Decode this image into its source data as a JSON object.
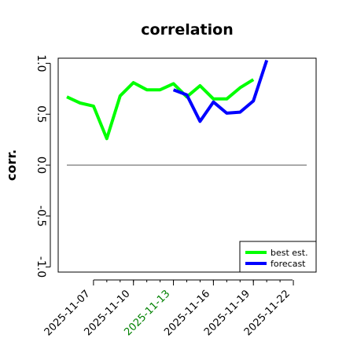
{
  "chart_data": {
    "type": "line",
    "title": "correlation",
    "ylabel": "corr.",
    "xlabel": "",
    "ylim": [
      -1.05,
      1.05
    ],
    "yticks": [
      -1.0,
      -0.5,
      0.0,
      0.5,
      1.0
    ],
    "x": [
      "2025-11-05",
      "2025-11-06",
      "2025-11-07",
      "2025-11-08",
      "2025-11-09",
      "2025-11-10",
      "2025-11-11",
      "2025-11-12",
      "2025-11-13",
      "2025-11-14",
      "2025-11-15",
      "2025-11-16",
      "2025-11-17",
      "2025-11-18",
      "2025-11-19",
      "2025-11-20",
      "2025-11-21",
      "2025-11-22",
      "2025-11-23"
    ],
    "xticks": [
      "2025-11-07",
      "2025-11-10",
      "2025-11-13",
      "2025-11-16",
      "2025-11-19",
      "2025-11-22"
    ],
    "highlight_tick": "2025-11-13",
    "highlight_color": "#008000",
    "reference_line": 0.0,
    "grid": false,
    "legend_position": "lower-right",
    "series": [
      {
        "name": "best est.",
        "color": "#00ff00",
        "x": [
          "2025-11-05",
          "2025-11-06",
          "2025-11-07",
          "2025-11-08",
          "2025-11-09",
          "2025-11-10",
          "2025-11-11",
          "2025-11-12",
          "2025-11-13",
          "2025-11-14",
          "2025-11-15",
          "2025-11-16",
          "2025-11-17",
          "2025-11-18",
          "2025-11-19",
          "2025-11-20"
        ],
        "values": [
          0.67,
          0.61,
          0.58,
          0.26,
          0.68,
          0.81,
          0.74,
          0.74,
          0.8,
          0.67,
          0.78,
          0.65,
          0.65,
          0.76,
          0.84,
          null
        ]
      },
      {
        "name": "forecast",
        "color": "#0000ff",
        "x": [
          "2025-11-13",
          "2025-11-14",
          "2025-11-15",
          "2025-11-16",
          "2025-11-17",
          "2025-11-18",
          "2025-11-19",
          "2025-11-20"
        ],
        "values": [
          0.74,
          0.69,
          0.43,
          0.62,
          0.51,
          0.52,
          0.63,
          1.03
        ]
      }
    ]
  }
}
